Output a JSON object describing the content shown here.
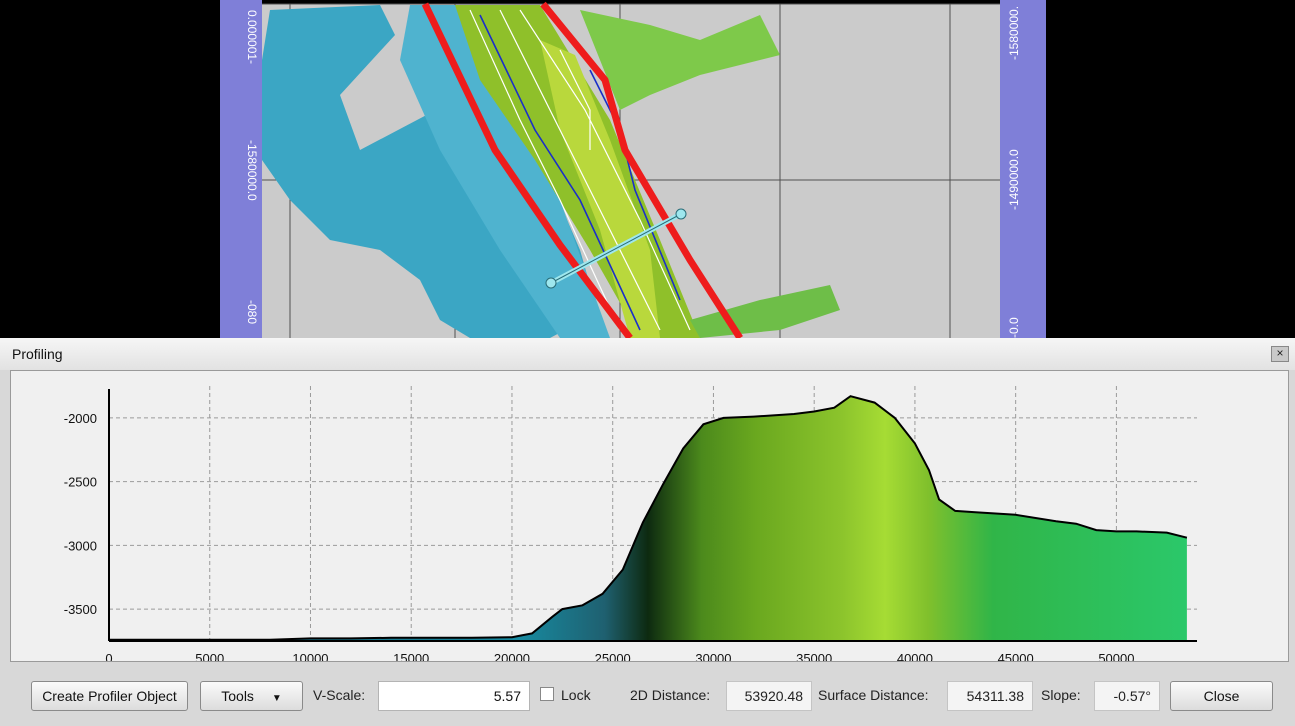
{
  "map": {
    "colors": {
      "background": "#000000",
      "frame": "#7f7fd8",
      "floor": "#cbcbcb",
      "grid": "#505050",
      "survey": "#3ba6c4",
      "ridge": "#8fc02a",
      "corridor": "#ee1c1c",
      "profile_line": "#9ee7ee"
    },
    "left_ruler": [
      "0.000001-",
      "-1580000.0",
      "-080"
    ],
    "right_ruler": [
      "-1580000.",
      "-1490000.0",
      "-0.0"
    ]
  },
  "panel": {
    "title": "Profiling",
    "close_glyph": "×"
  },
  "chart_data": {
    "type": "area",
    "title": "",
    "xlabel": "",
    "ylabel": "",
    "x_ticks": [
      "0",
      "5000",
      "10000",
      "15000",
      "20000",
      "25000",
      "30000",
      "35000",
      "40000",
      "45000",
      "50000"
    ],
    "y_ticks": [
      "-2000",
      "-2500",
      "-3000",
      "-3500"
    ],
    "xlim": [
      0,
      54000
    ],
    "ylim": [
      -3750,
      -1750
    ],
    "grid": true,
    "legend": "none",
    "series": [
      {
        "x": [
          0,
          8000,
          10000,
          12000,
          14000,
          16000,
          18000,
          20000,
          21000,
          22000,
          22500,
          23500,
          24500,
          25500,
          26500,
          27500,
          28500,
          29500,
          30500,
          32000,
          34000,
          35000,
          36000,
          36800,
          38000,
          39000,
          40000,
          40700,
          41200,
          42000,
          43000,
          45000,
          47000,
          48000,
          49000,
          50000,
          51000,
          52500,
          53500
        ],
        "values": [
          -3740,
          -3740,
          -3730,
          -3730,
          -3725,
          -3725,
          -3725,
          -3720,
          -3690,
          -3560,
          -3500,
          -3470,
          -3380,
          -3190,
          -2820,
          -2520,
          -2240,
          -2050,
          -2000,
          -1990,
          -1970,
          -1950,
          -1920,
          -1830,
          -1880,
          -2000,
          -2200,
          -2410,
          -2640,
          -2730,
          -2740,
          -2760,
          -2810,
          -2830,
          -2880,
          -2890,
          -2890,
          -2900,
          -2940
        ]
      }
    ]
  },
  "toolbar": {
    "create_profiler_label": "Create Profiler Object",
    "tools_label": "Tools",
    "tools_arrow": "▼",
    "vscale_label": "V-Scale:",
    "vscale_value": "5.57",
    "lock_label": "Lock",
    "distance_2d_label": "2D Distance:",
    "distance_2d_value": "53920.48",
    "surface_distance_label": "Surface Distance:",
    "surface_distance_value": "54311.38",
    "slope_label": "Slope:",
    "slope_value": "-0.57°",
    "close_label": "Close"
  }
}
